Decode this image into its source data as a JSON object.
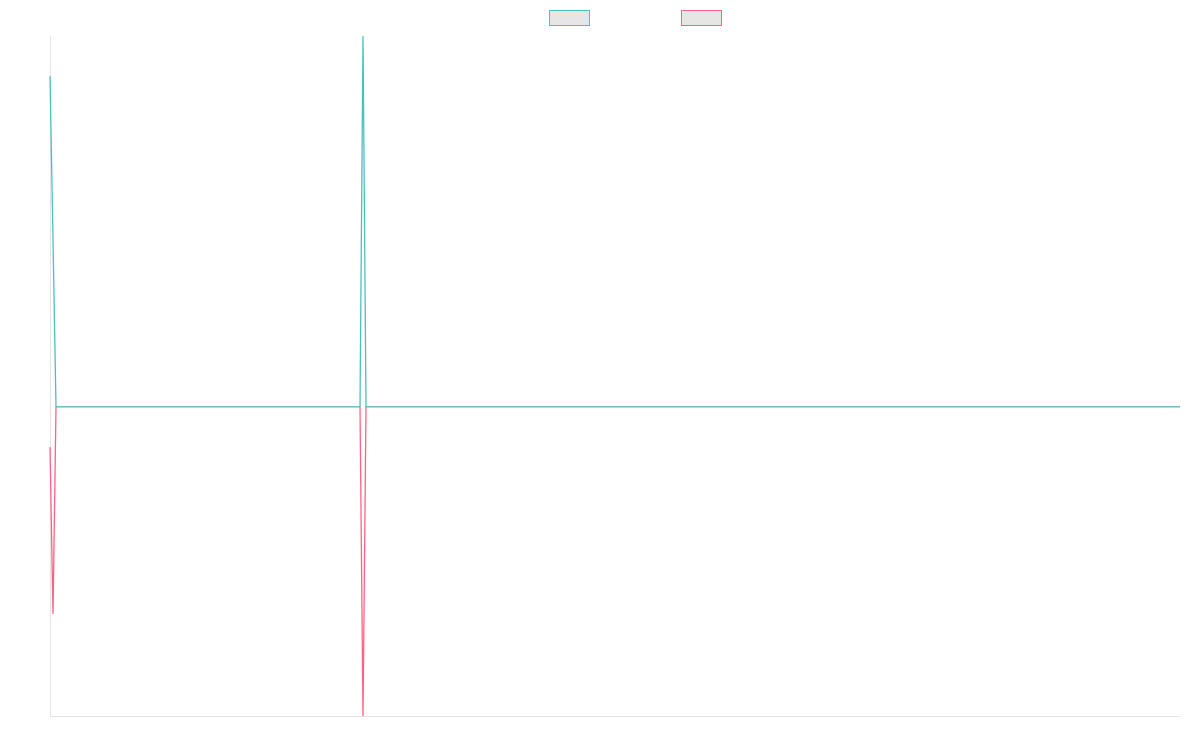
{
  "chart_data": {
    "type": "line",
    "x": [
      0,
      3,
      6,
      310,
      313,
      316,
      1130
    ],
    "xlim": [
      0,
      1130
    ],
    "ylim": [
      -100,
      120
    ],
    "series": [
      {
        "color": "#ff6384",
        "values": [
          -13,
          -67,
          0,
          0,
          -100,
          0,
          0
        ]
      },
      {
        "color": "#4bc0c0",
        "values": [
          107,
          54,
          0,
          0,
          120,
          0,
          0
        ]
      }
    ],
    "legend": "top"
  }
}
